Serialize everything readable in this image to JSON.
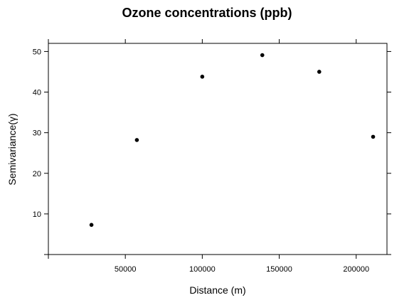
{
  "chart_data": {
    "type": "scatter",
    "title": "Ozone concentrations (ppb)",
    "xlabel": "Distance (m)",
    "ylabel": "Semivariance(γ)",
    "xlim": [
      0,
      220000
    ],
    "ylim": [
      0,
      52
    ],
    "x_ticks": [
      50000,
      100000,
      150000,
      200000
    ],
    "x_tick_labels": [
      "50000",
      "100000",
      "150000",
      "200000"
    ],
    "y_ticks": [
      10,
      20,
      30,
      40,
      50
    ],
    "y_tick_labels": [
      "10",
      "20",
      "30",
      "40",
      "50"
    ],
    "grid": false,
    "marker_color": "#000000",
    "points": [
      {
        "x": 28000,
        "y": 7.3
      },
      {
        "x": 57500,
        "y": 28.2
      },
      {
        "x": 100000,
        "y": 43.8
      },
      {
        "x": 139000,
        "y": 49.1
      },
      {
        "x": 176000,
        "y": 45.0
      },
      {
        "x": 211000,
        "y": 29.0
      }
    ]
  }
}
